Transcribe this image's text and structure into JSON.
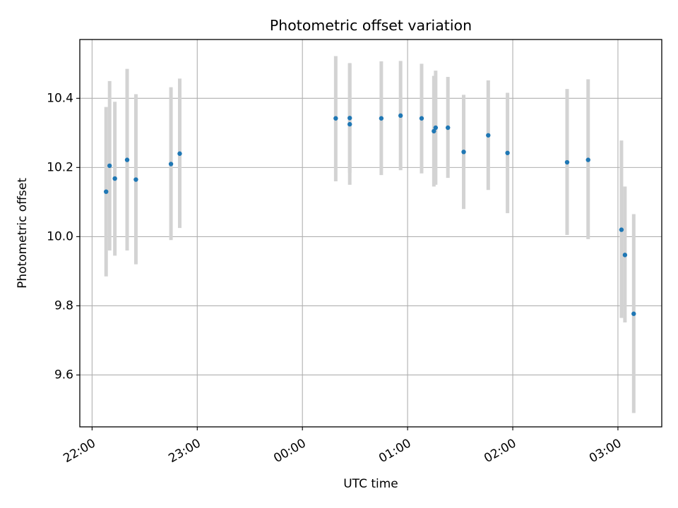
{
  "chart_data": {
    "type": "scatter",
    "title": "Photometric offset variation",
    "xlabel": "UTC time",
    "ylabel": "Photometric offset",
    "x_tick_labels": [
      "22:00",
      "23:00",
      "00:00",
      "01:00",
      "02:00",
      "03:00"
    ],
    "x_tick_values": [
      "22:00",
      "23:00",
      "00:00",
      "01:00",
      "02:00",
      "03:00"
    ],
    "y_tick_labels": [
      "9.6",
      "9.8",
      "10.0",
      "10.2",
      "10.4"
    ],
    "y_tick_values": [
      9.6,
      9.8,
      10.0,
      10.2,
      10.4
    ],
    "xlim": [
      "21:53",
      "03:25"
    ],
    "ylim": [
      9.45,
      10.57
    ],
    "grid": true,
    "point_color": "#1f77b4",
    "errorbar_color": "#d3d3d3",
    "series": [
      {
        "points": [
          {
            "x": "22:08",
            "y": 10.13,
            "ylow": 9.885,
            "yhigh": 10.375
          },
          {
            "x": "22:10",
            "y": 10.205,
            "ylow": 9.96,
            "yhigh": 10.45
          },
          {
            "x": "22:13",
            "y": 10.168,
            "ylow": 9.945,
            "yhigh": 10.39
          },
          {
            "x": "22:20",
            "y": 10.222,
            "ylow": 9.96,
            "yhigh": 10.485
          },
          {
            "x": "22:25",
            "y": 10.165,
            "ylow": 9.92,
            "yhigh": 10.412
          },
          {
            "x": "22:45",
            "y": 10.21,
            "ylow": 9.99,
            "yhigh": 10.432
          },
          {
            "x": "22:50",
            "y": 10.24,
            "ylow": 10.025,
            "yhigh": 10.457
          },
          {
            "x": "00:19",
            "y": 10.342,
            "ylow": 10.16,
            "yhigh": 10.522
          },
          {
            "x": "00:27",
            "y": 10.343,
            "ylow": 10.185,
            "yhigh": 10.502
          },
          {
            "x": "00:27",
            "y": 10.325,
            "ylow": 10.15,
            "yhigh": 10.5
          },
          {
            "x": "00:45",
            "y": 10.342,
            "ylow": 10.178,
            "yhigh": 10.507
          },
          {
            "x": "00:56",
            "y": 10.35,
            "ylow": 10.192,
            "yhigh": 10.508
          },
          {
            "x": "01:08",
            "y": 10.342,
            "ylow": 10.183,
            "yhigh": 10.5
          },
          {
            "x": "01:15",
            "y": 10.305,
            "ylow": 10.145,
            "yhigh": 10.465
          },
          {
            "x": "01:16",
            "y": 10.315,
            "ylow": 10.15,
            "yhigh": 10.48
          },
          {
            "x": "01:23",
            "y": 10.315,
            "ylow": 10.17,
            "yhigh": 10.462
          },
          {
            "x": "01:32",
            "y": 10.245,
            "ylow": 10.08,
            "yhigh": 10.41
          },
          {
            "x": "01:46",
            "y": 10.293,
            "ylow": 10.135,
            "yhigh": 10.452
          },
          {
            "x": "01:57",
            "y": 10.242,
            "ylow": 10.068,
            "yhigh": 10.416
          },
          {
            "x": "02:31",
            "y": 10.215,
            "ylow": 10.005,
            "yhigh": 10.427
          },
          {
            "x": "02:43",
            "y": 10.222,
            "ylow": 9.993,
            "yhigh": 10.455
          },
          {
            "x": "03:02",
            "y": 10.02,
            "ylow": 9.765,
            "yhigh": 10.278
          },
          {
            "x": "03:04",
            "y": 9.947,
            "ylow": 9.752,
            "yhigh": 10.145
          },
          {
            "x": "03:09",
            "y": 9.777,
            "ylow": 9.49,
            "yhigh": 10.065
          }
        ]
      }
    ]
  }
}
